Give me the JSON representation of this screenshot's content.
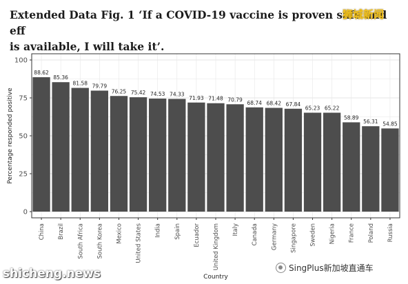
{
  "heading": {
    "line1": "Extended Data Fig. 1 ‘If a COVID-19 vaccine is proven safe and eff",
    "line2": "is available, I will take it’."
  },
  "watermarks": {
    "top_right": "狮城新闻",
    "bottom_left": "shicheng.news",
    "bottom_right": "SingPlus新加坡直通车"
  },
  "colors": {
    "bar": "#4d4d4d",
    "grid": "#e6e6e6",
    "panel_border": "#333333"
  },
  "chart_data": {
    "type": "bar",
    "xlabel": "Country",
    "ylabel": "Percentage responded positive",
    "ylim": [
      0,
      100
    ],
    "yticks": [
      0,
      25,
      50,
      75,
      100
    ],
    "grid": true,
    "categories": [
      "China",
      "Brazil",
      "South Africa",
      "South Korea",
      "Mexico",
      "United States",
      "India",
      "Spain",
      "Ecuador",
      "United Kingdom",
      "Italy",
      "Canada",
      "Germany",
      "Singapore",
      "Sweden",
      "Nigeria",
      "France",
      "Poland",
      "Russia"
    ],
    "values": [
      88.62,
      85.36,
      81.58,
      79.79,
      76.25,
      75.42,
      74.53,
      74.33,
      71.93,
      71.48,
      70.79,
      68.74,
      68.42,
      67.84,
      65.23,
      65.22,
      58.89,
      56.31,
      54.85
    ],
    "data_labels": [
      "88.62",
      "85.36",
      "81.58",
      "79.79",
      "76.25",
      "75.42",
      "74.53",
      "74.33",
      "71.93",
      "71.48",
      "70.79",
      "68.74",
      "68.42",
      "67.84",
      "65.23",
      "65.22",
      "58.89",
      "56.31",
      "54.85"
    ]
  }
}
